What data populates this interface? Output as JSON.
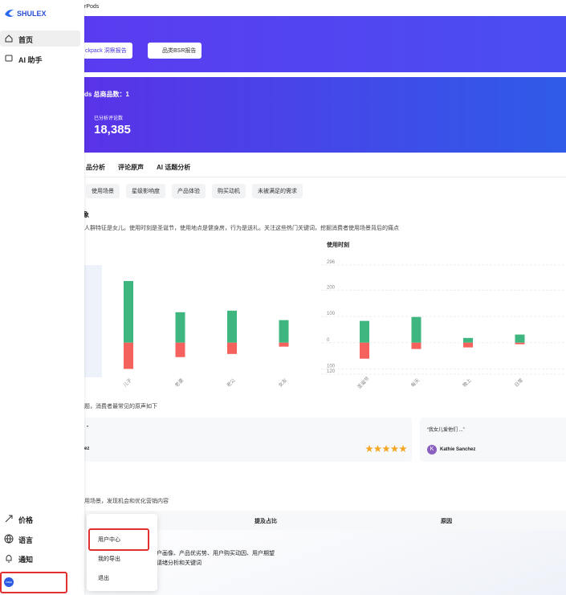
{
  "sidebar": {
    "logo": "SHULEX",
    "nav": [
      "首页",
      "AI 助手"
    ],
    "bottom": [
      "价格",
      "语言",
      "通知"
    ],
    "badge": "FREE"
  },
  "user_menu": [
    "用户中心",
    "我的导出",
    "退出"
  ],
  "header": {
    "breadcrumb": "rPods"
  },
  "banner": {
    "buttons": [
      "ckpack 洞察报告",
      "品类BSR报告"
    ]
  },
  "stats": {
    "title": "ds  总商品数：1",
    "label": "已分析评论数",
    "value": "18,385"
  },
  "tabs": [
    "品分析",
    "评论原声",
    "AI 话题分析"
  ],
  "subtabs": [
    "使用场景",
    "星级影响度",
    "产品体验",
    "购买动机",
    "未被满足的需求"
  ],
  "section": {
    "heading": "象",
    "description": "人群特征是女儿。使用时刻是圣诞节，使用地点是健身房，行为是送礼。关注这些热门关键词，挖掘消费者使用场景背后的痛点"
  },
  "charts": [
    {
      "type": "bar",
      "categories": [
        "儿子",
        "老婆",
        "老公",
        "女友"
      ],
      "ylim": [
        -120,
        296
      ],
      "series": [
        {
          "color": "#3fb67f",
          "values": [
            235,
            116,
            122,
            86
          ]
        },
        {
          "color": "#f5625d",
          "values": [
            -100,
            -55,
            -43,
            -15
          ]
        }
      ]
    },
    {
      "type": "bar",
      "title": "使用时刻",
      "categories": [
        "圣诞节",
        "每天",
        "晚上",
        "日常"
      ],
      "ylim": [
        -120,
        296
      ],
      "yticks": [
        296,
        200,
        100,
        0,
        {
          "value": -100,
          "label": "100"
        },
        {
          "value": -120,
          "label": "120"
        }
      ],
      "series": [
        {
          "color": "#3fb67f",
          "values": [
            83,
            98,
            18,
            31
          ]
        },
        {
          "color": "#f5625d",
          "values": [
            -61,
            -24,
            -18,
            -6
          ]
        }
      ]
    }
  ],
  "quotes": {
    "intro": "题，消费者最常见的原声如下",
    "cards": [
      {
        "text": "”",
        "author": "ez",
        "rating": 5
      },
      {
        "text": "“我女儿爱他们 ...”",
        "avatar": "K",
        "author": "Kathie Sanchez"
      }
    ]
  },
  "table": {
    "intro": "用场景，发现机会和优化营销内容",
    "headers": [
      "提及占比",
      "原因"
    ],
    "rows": [
      [
        "户画像、产品优劣势、用户购买动因、用户期望",
        "请绪分析和关键词"
      ]
    ]
  }
}
